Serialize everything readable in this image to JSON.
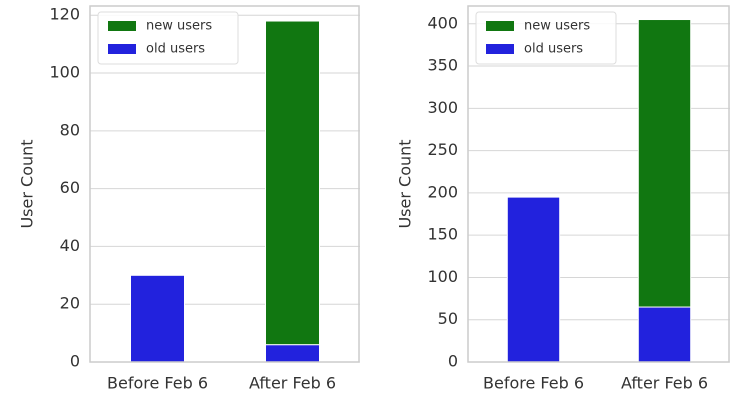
{
  "chart_data": [
    {
      "type": "stacked_bar",
      "ylabel": "User Count",
      "categories": [
        "Before Feb 6",
        "After Feb 6"
      ],
      "series": [
        {
          "name": "new users",
          "color": "#117711",
          "values": [
            0,
            112
          ]
        },
        {
          "name": "old users",
          "color": "#2222dd",
          "values": [
            30,
            6
          ]
        }
      ],
      "ylim": [
        0,
        123.2
      ],
      "yticks": [
        0,
        20,
        40,
        60,
        80,
        100,
        120
      ],
      "grid": true,
      "legend": "upper left"
    },
    {
      "type": "stacked_bar",
      "ylabel": "User Count",
      "categories": [
        "Before Feb 6",
        "After Feb 6"
      ],
      "series": [
        {
          "name": "new users",
          "color": "#117711",
          "values": [
            0,
            340
          ]
        },
        {
          "name": "old users",
          "color": "#2222dd",
          "values": [
            195,
            65
          ]
        }
      ],
      "ylim": [
        0,
        421
      ],
      "yticks": [
        0,
        50,
        100,
        150,
        200,
        250,
        300,
        350,
        400
      ],
      "grid": true,
      "legend": "upper left"
    }
  ]
}
